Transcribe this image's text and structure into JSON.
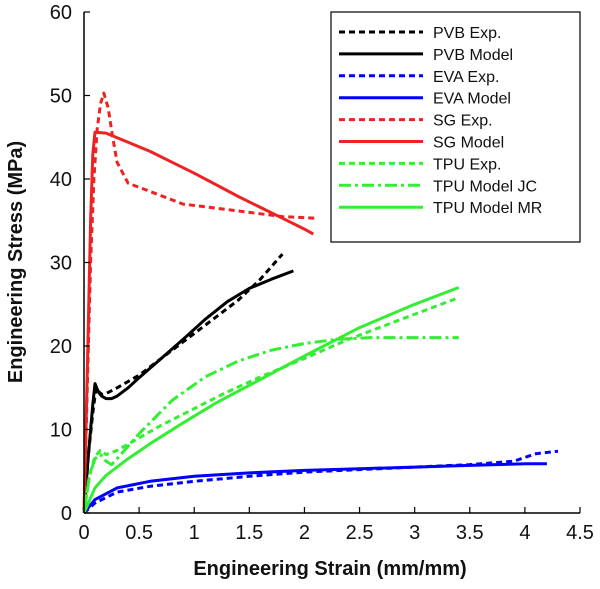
{
  "chart_data": {
    "type": "line",
    "xlabel": "Engineering Strain (mm/mm)",
    "ylabel": "Engineering Stress (MPa)",
    "xlim": [
      0,
      4.5
    ],
    "ylim": [
      0,
      60
    ],
    "xticks": [
      0,
      0.5,
      1,
      1.5,
      2,
      2.5,
      3,
      3.5,
      4,
      4.5
    ],
    "xtick_labels": [
      "0",
      "0.5",
      "1",
      "1.5",
      "2",
      "2.5",
      "3",
      "3.5",
      "4",
      "4.5"
    ],
    "yticks": [
      0,
      10,
      20,
      30,
      40,
      50,
      60
    ],
    "ytick_labels": [
      "0",
      "10",
      "20",
      "30",
      "40",
      "50",
      "60"
    ],
    "grid": false,
    "legend_position": "top-right",
    "series": [
      {
        "name": "PVB Exp.",
        "color": "#000000",
        "style": "dashed",
        "x": [
          0,
          0.04,
          0.08,
          0.11,
          0.13,
          0.16,
          0.2,
          0.3,
          0.5,
          0.8,
          1.0,
          1.2,
          1.4,
          1.6,
          1.8
        ],
        "y": [
          0,
          7,
          12,
          15,
          14.6,
          14.2,
          14.3,
          15.0,
          16.5,
          19.5,
          21.5,
          23.5,
          25.5,
          28,
          31
        ]
      },
      {
        "name": "PVB Model",
        "color": "#000000",
        "style": "solid",
        "x": [
          0,
          0.04,
          0.08,
          0.1,
          0.13,
          0.16,
          0.2,
          0.25,
          0.3,
          0.4,
          0.5,
          0.7,
          0.9,
          1.1,
          1.3,
          1.5,
          1.7,
          1.9
        ],
        "y": [
          0,
          7,
          13,
          15.5,
          14.5,
          14.0,
          13.7,
          13.7,
          14.0,
          15.0,
          16.2,
          18.5,
          20.8,
          23.2,
          25.3,
          26.9,
          28.0,
          29.0
        ]
      },
      {
        "name": "EVA Exp.",
        "color": "#0000ff",
        "style": "dashed",
        "x": [
          0,
          0.1,
          0.3,
          0.6,
          1.0,
          1.5,
          2.0,
          2.5,
          3.0,
          3.5,
          3.9,
          4.1,
          4.3
        ],
        "y": [
          0,
          1.2,
          2.5,
          3.2,
          3.8,
          4.4,
          4.9,
          5.2,
          5.5,
          5.8,
          6.2,
          7.1,
          7.4
        ]
      },
      {
        "name": "EVA Model",
        "color": "#0000ff",
        "style": "solid",
        "x": [
          0,
          0.1,
          0.3,
          0.6,
          1.0,
          1.5,
          2.0,
          2.5,
          3.0,
          3.5,
          4.0,
          4.2
        ],
        "y": [
          0,
          1.6,
          3.0,
          3.8,
          4.4,
          4.8,
          5.1,
          5.3,
          5.5,
          5.7,
          5.9,
          5.9
        ]
      },
      {
        "name": "SG Exp.",
        "color": "#ee2222",
        "style": "dashed",
        "x": [
          0,
          0.03,
          0.06,
          0.09,
          0.12,
          0.15,
          0.18,
          0.22,
          0.26,
          0.3,
          0.4,
          0.6,
          0.9,
          1.2,
          1.5,
          1.8,
          2.1
        ],
        "y": [
          0,
          15,
          30,
          40,
          46,
          49,
          50.3,
          48.5,
          45,
          42,
          39.5,
          38.5,
          37,
          36.5,
          36,
          35.5,
          35.3
        ]
      },
      {
        "name": "SG Model",
        "color": "#ee2222",
        "style": "solid",
        "x": [
          0,
          0.03,
          0.06,
          0.08,
          0.1,
          0.2,
          0.4,
          0.6,
          0.8,
          1.0,
          1.2,
          1.4,
          1.6,
          1.8,
          2.0,
          2.08
        ],
        "y": [
          0,
          17,
          35,
          43,
          45.6,
          45.5,
          44.4,
          43.3,
          42.0,
          40.7,
          39.3,
          37.9,
          36.6,
          35.3,
          34.0,
          33.4
        ]
      },
      {
        "name": "TPU Exp.",
        "color": "#33ee33",
        "style": "dashed",
        "x": [
          0,
          0.05,
          0.1,
          0.15,
          0.2,
          0.3,
          0.5,
          0.7,
          1.0,
          1.3,
          1.6,
          2.0,
          2.4,
          2.8,
          3.1,
          3.4
        ],
        "y": [
          0,
          4.5,
          6.8,
          7.5,
          7.0,
          7.5,
          9.0,
          10.5,
          12.5,
          14.5,
          16.3,
          18.5,
          20.8,
          22.8,
          24.3,
          25.8
        ]
      },
      {
        "name": "TPU Model JC",
        "color": "#33ee33",
        "style": "dashdot",
        "x": [
          0,
          0.05,
          0.1,
          0.15,
          0.2,
          0.25,
          0.3,
          0.5,
          0.8,
          1.1,
          1.4,
          1.7,
          2.0,
          2.3,
          2.6,
          3.0,
          3.4
        ],
        "y": [
          0,
          4.5,
          6.5,
          7.0,
          6.2,
          5.8,
          6.5,
          9.5,
          13.5,
          16.3,
          18.2,
          19.5,
          20.3,
          20.8,
          21.0,
          21.0,
          21.0
        ]
      },
      {
        "name": "TPU Model MR",
        "color": "#33ee33",
        "style": "solid",
        "x": [
          0,
          0.1,
          0.2,
          0.4,
          0.6,
          0.9,
          1.2,
          1.6,
          2.0,
          2.5,
          3.0,
          3.4
        ],
        "y": [
          0,
          3.0,
          4.5,
          6.5,
          8.3,
          10.8,
          13.2,
          16.0,
          18.8,
          22.2,
          25.0,
          27.0
        ]
      }
    ]
  }
}
